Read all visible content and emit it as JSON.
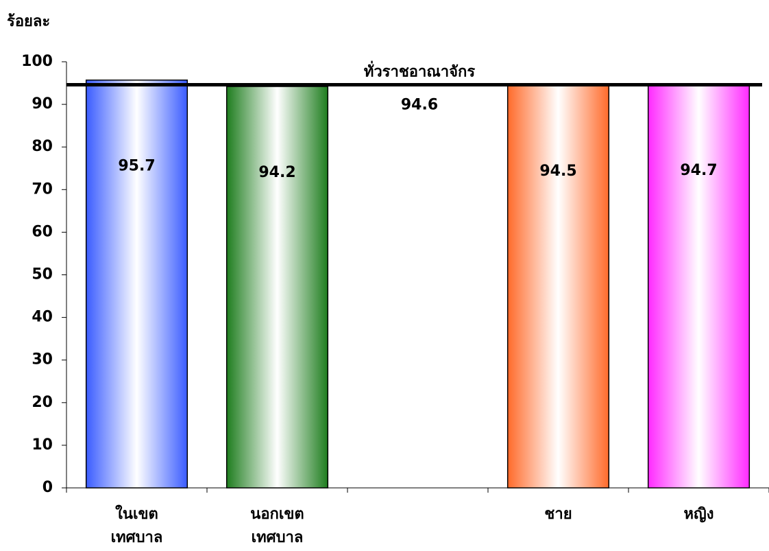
{
  "chart_data": {
    "type": "bar",
    "y_axis_label": "ร้อยละ",
    "categories": [
      "ในเขต\nเทศบาล",
      "นอกเขต\nเทศบาล",
      null,
      "ชาย",
      "หญิง"
    ],
    "values": [
      95.7,
      94.2,
      null,
      94.5,
      94.7
    ],
    "colors": [
      "#3a5cff",
      "#1e7d1e",
      null,
      "#ff6a2a",
      "#ff2aff"
    ],
    "ylim": [
      0,
      100
    ],
    "yticks": [
      0,
      10,
      20,
      30,
      40,
      50,
      60,
      70,
      80,
      90,
      100
    ],
    "reference_line": {
      "value": 94.6,
      "label": "ทั่วราชอาณาจักร"
    }
  }
}
